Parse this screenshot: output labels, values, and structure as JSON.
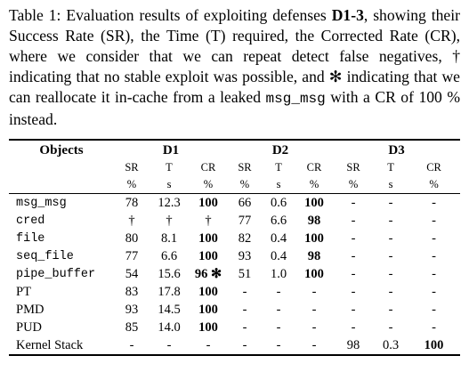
{
  "caption": {
    "part1": "Table 1: Evaluation results of exploiting defenses ",
    "bold1": "D1-3",
    "part2": ", showing their Success Rate (SR), the Time (T) required, the Corrected Rate (CR), where we consider that we can repeat detect false negatives, † indicating that no stable exploit was possible, and ✻ indicating that we can reallocate it in-cache from a leaked ",
    "code": "msg_msg",
    "part3": " with a CR of 100 % instead."
  },
  "table": {
    "object_header": "Objects",
    "groups": [
      "D1",
      "D2",
      "D3"
    ],
    "subheaders": [
      "SR",
      "T",
      "CR",
      "SR",
      "T",
      "CR",
      "SR",
      "T",
      "CR"
    ],
    "units": [
      "%",
      "s",
      "%",
      "%",
      "s",
      "%",
      "%",
      "s",
      "%"
    ],
    "rows": [
      {
        "name": "msg_msg",
        "mono": true,
        "cells": [
          "78",
          "12.3",
          "100",
          "66",
          "0.6",
          "100",
          "-",
          "-",
          "-"
        ],
        "bold": [
          false,
          false,
          true,
          false,
          false,
          true,
          false,
          false,
          false
        ]
      },
      {
        "name": "cred",
        "mono": true,
        "cells": [
          "†",
          "†",
          "†",
          "77",
          "6.6",
          "98",
          "-",
          "-",
          "-"
        ],
        "bold": [
          false,
          false,
          false,
          false,
          false,
          true,
          false,
          false,
          false
        ]
      },
      {
        "name": "file",
        "mono": true,
        "cells": [
          "80",
          "8.1",
          "100",
          "82",
          "0.4",
          "100",
          "-",
          "-",
          "-"
        ],
        "bold": [
          false,
          false,
          true,
          false,
          false,
          true,
          false,
          false,
          false
        ]
      },
      {
        "name": "seq_file",
        "mono": true,
        "cells": [
          "77",
          "6.6",
          "100",
          "93",
          "0.4",
          "98",
          "-",
          "-",
          "-"
        ],
        "bold": [
          false,
          false,
          true,
          false,
          false,
          true,
          false,
          false,
          false
        ]
      },
      {
        "name": "pipe_buffer",
        "mono": true,
        "cells": [
          "54",
          "15.6",
          "96 ✻",
          "51",
          "1.0",
          "100",
          "-",
          "-",
          "-"
        ],
        "bold": [
          false,
          false,
          true,
          false,
          false,
          true,
          false,
          false,
          false
        ]
      },
      {
        "name": "PT",
        "mono": false,
        "cells": [
          "83",
          "17.8",
          "100",
          "-",
          "-",
          "-",
          "-",
          "-",
          "-"
        ],
        "bold": [
          false,
          false,
          true,
          false,
          false,
          false,
          false,
          false,
          false
        ]
      },
      {
        "name": "PMD",
        "mono": false,
        "cells": [
          "93",
          "14.5",
          "100",
          "-",
          "-",
          "-",
          "-",
          "-",
          "-"
        ],
        "bold": [
          false,
          false,
          true,
          false,
          false,
          false,
          false,
          false,
          false
        ]
      },
      {
        "name": "PUD",
        "mono": false,
        "cells": [
          "85",
          "14.0",
          "100",
          "-",
          "-",
          "-",
          "-",
          "-",
          "-"
        ],
        "bold": [
          false,
          false,
          true,
          false,
          false,
          false,
          false,
          false,
          false
        ]
      },
      {
        "name": "Kernel Stack",
        "mono": false,
        "cells": [
          "-",
          "-",
          "-",
          "-",
          "-",
          "-",
          "98",
          "0.3",
          "100"
        ],
        "bold": [
          false,
          false,
          false,
          false,
          false,
          false,
          false,
          false,
          true
        ]
      }
    ]
  }
}
